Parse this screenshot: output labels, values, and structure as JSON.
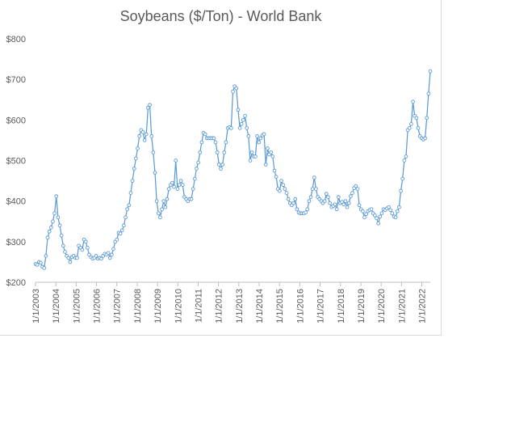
{
  "chart_data": {
    "type": "line",
    "title": "Soybeans ($/Ton) - World Bank",
    "xlabel": "",
    "ylabel": "",
    "ylim": [
      200,
      800
    ],
    "y_ticks": [
      "$200",
      "$300",
      "$400",
      "$500",
      "$600",
      "$700",
      "$800"
    ],
    "y_tick_values": [
      200,
      300,
      400,
      500,
      600,
      700,
      800
    ],
    "x_ticks": [
      "1/1/2003",
      "1/1/2004",
      "1/1/2005",
      "1/1/2006",
      "1/1/2007",
      "1/1/2008",
      "1/1/2009",
      "1/1/2010",
      "1/1/2011",
      "1/1/2012",
      "1/1/2013",
      "1/1/2014",
      "1/1/2015",
      "1/1/2016",
      "1/1/2017",
      "1/1/2018",
      "1/1/2019",
      "1/1/2020",
      "1/1/2021",
      "1/1/2022"
    ],
    "x_start": "2003-01",
    "x_end": "2022-06",
    "grid": false,
    "legend": "none",
    "line_color": "#5b9bd5",
    "series": [
      {
        "name": "",
        "values": [
          245,
          243,
          250,
          248,
          238,
          235,
          265,
          310,
          325,
          335,
          350,
          370,
          412,
          360,
          340,
          315,
          290,
          275,
          265,
          260,
          250,
          262,
          265,
          260,
          260,
          290,
          285,
          280,
          305,
          300,
          285,
          268,
          262,
          258,
          260,
          265,
          258,
          260,
          258,
          265,
          270,
          268,
          272,
          260,
          268,
          282,
          300,
          305,
          322,
          320,
          328,
          340,
          360,
          380,
          390,
          420,
          450,
          480,
          505,
          530,
          560,
          575,
          570,
          550,
          565,
          630,
          637,
          560,
          520,
          470,
          400,
          370,
          360,
          380,
          400,
          385,
          405,
          430,
          440,
          445,
          435,
          500,
          430,
          440,
          450,
          440,
          410,
          405,
          400,
          405,
          405,
          430,
          455,
          480,
          495,
          520,
          545,
          568,
          565,
          555,
          555,
          555,
          555,
          555,
          545,
          520,
          490,
          480,
          490,
          520,
          545,
          580,
          582,
          580,
          670,
          683,
          678,
          625,
          580,
          590,
          600,
          610,
          580,
          560,
          500,
          520,
          510,
          510,
          560,
          545,
          555,
          562,
          565,
          490,
          530,
          515,
          520,
          510,
          475,
          460,
          430,
          425,
          450,
          440,
          430,
          420,
          405,
          395,
          390,
          395,
          405,
          380,
          372,
          370,
          370,
          370,
          372,
          380,
          400,
          410,
          430,
          458,
          430,
          410,
          405,
          400,
          395,
          400,
          418,
          410,
          395,
          385,
          388,
          392,
          380,
          410,
          395,
          398,
          392,
          400,
          385,
          395,
          412,
          420,
          432,
          437,
          430,
          390,
          380,
          375,
          360,
          368,
          375,
          378,
          380,
          370,
          365,
          358,
          345,
          362,
          370,
          380,
          378,
          382,
          385,
          378,
          370,
          362,
          360,
          375,
          385,
          425,
          455,
          500,
          510,
          575,
          580,
          590,
          645,
          610,
          605,
          580,
          560,
          555,
          552,
          555,
          605,
          665,
          720
        ]
      }
    ]
  }
}
